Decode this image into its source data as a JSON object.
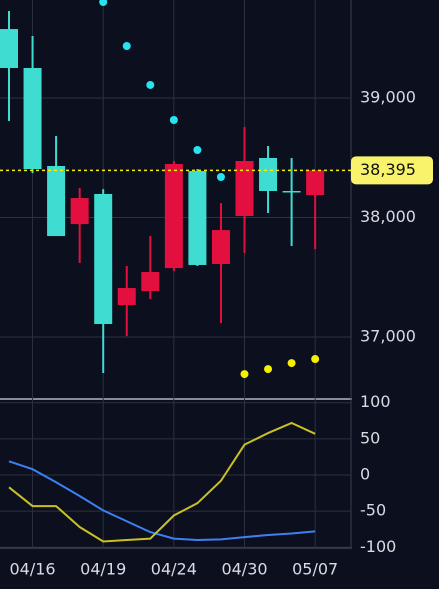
{
  "chart_data": [
    {
      "type": "candlestick",
      "categories": [
        null,
        "04/16",
        null,
        null,
        "04/19",
        null,
        null,
        "04/24",
        null,
        null,
        "04/30",
        null,
        null,
        "05/07"
      ],
      "open": [
        39577,
        39251,
        38431,
        37945,
        38197,
        37268,
        37385,
        37577,
        38389,
        37611,
        38013,
        38498,
        38222,
        38188
      ],
      "high": [
        39728,
        39519,
        38682,
        38247,
        38238,
        37594,
        37845,
        38473,
        38406,
        38121,
        38757,
        38598,
        38498,
        38395
      ],
      "low": [
        38808,
        38372,
        37845,
        37619,
        36699,
        37008,
        37318,
        37552,
        37594,
        37117,
        37703,
        38038,
        37762,
        37736
      ],
      "close": [
        39251,
        38406,
        37845,
        38163,
        37109,
        37410,
        37544,
        38448,
        37603,
        37895,
        38473,
        38222,
        38213,
        38395
      ],
      "up_color": "#e3103f",
      "down_color": "#3fdcd2",
      "series": [
        {
          "color": "#27e3f2",
          "values": [
            null,
            null,
            null,
            null,
            39803,
            39435,
            39109,
            38816,
            38565,
            38339,
            null,
            null,
            null,
            null
          ]
        },
        {
          "color": "#f4f000",
          "values": [
            null,
            null,
            null,
            null,
            null,
            null,
            null,
            null,
            null,
            null,
            36690,
            36732,
            36782,
            36816
          ]
        }
      ],
      "last_price": {
        "value": 38395,
        "label": "38,395"
      },
      "ylim": [
        36490,
        39820
      ],
      "yticks": [
        {
          "value": 37000,
          "label": "37,000"
        },
        {
          "value": 38000,
          "label": "38,000"
        },
        {
          "value": 39000,
          "label": "39,000"
        }
      ],
      "grid": true
    },
    {
      "type": "line",
      "series": [
        {
          "color": "#3d80f2",
          "values": [
            19,
            8,
            -10,
            -29,
            -49,
            -64,
            -79,
            -88,
            -90,
            -89,
            -86,
            -83,
            -81,
            -78
          ]
        },
        {
          "color": "#c9c124",
          "values": [
            -17,
            -43,
            -43,
            -72,
            -92,
            -90,
            -88,
            -56,
            -39,
            -8,
            42,
            58,
            72,
            57
          ]
        }
      ],
      "ylim": [
        -101,
        101
      ],
      "yticks": [
        -100,
        -50,
        0,
        50,
        100
      ],
      "grid": true
    }
  ]
}
